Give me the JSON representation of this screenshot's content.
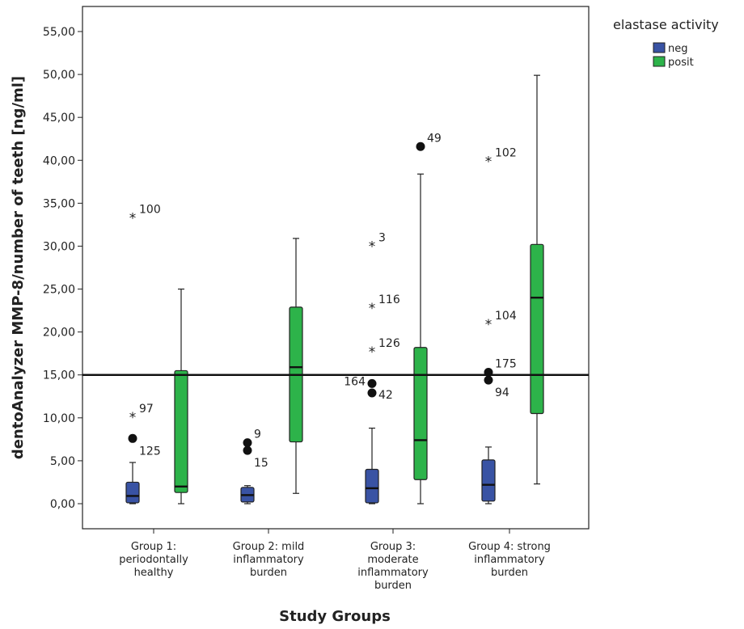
{
  "chart_data": {
    "type": "boxplot",
    "xlabel": "Study Groups",
    "ylabel": "dentoAnalyzer MMP-8/number of teeth [ng/ml]",
    "ylim": [
      -3,
      58
    ],
    "yticks": [
      "0,00",
      "5,00",
      "10,00",
      "15,00",
      "20,00",
      "25,00",
      "30,00",
      "35,00",
      "40,00",
      "45,00",
      "50,00",
      "55,00"
    ],
    "reference_line": 15,
    "grid": false,
    "legend": {
      "title": "elastase activity",
      "placement": "top-right",
      "entries": [
        {
          "label": "neg",
          "color": "#3953a4"
        },
        {
          "label": "posit",
          "color": "#2db34a"
        }
      ]
    },
    "categories": [
      [
        "Group 1:",
        "periodontally",
        "healthy"
      ],
      [
        "Group 2: mild",
        "inflammatory",
        "burden"
      ],
      [
        "Group 3:",
        "moderate",
        "inflammatory",
        "burden"
      ],
      [
        "Group 4: strong",
        "inflammatory",
        "burden"
      ]
    ],
    "series": [
      {
        "name": "neg",
        "color": "#3953a4",
        "boxes": [
          {
            "min": 0.0,
            "q1": 0.1,
            "median": 0.9,
            "q3": 2.5,
            "max": 4.8,
            "outliers": [
              {
                "value": 7.6,
                "label": "125",
                "marker": "dot",
                "label_side": "lower-right"
              },
              {
                "value": 10.1,
                "label": "97",
                "marker": "star",
                "label_side": "upper-right"
              },
              {
                "value": 33.3,
                "label": "100",
                "marker": "star",
                "label_side": "upper-right"
              }
            ]
          },
          {
            "min": 0.0,
            "q1": 0.2,
            "median": 1.0,
            "q3": 1.9,
            "max": 2.1,
            "outliers": [
              {
                "value": 6.2,
                "label": "15",
                "marker": "dot",
                "label_side": "lower-right"
              },
              {
                "value": 7.1,
                "label": "9",
                "marker": "dot",
                "label_side": "upper-right"
              }
            ]
          },
          {
            "min": 0.0,
            "q1": 0.1,
            "median": 1.8,
            "q3": 4.0,
            "max": 8.8,
            "outliers": [
              {
                "value": 12.9,
                "label": "42",
                "marker": "dot",
                "label_side": "right"
              },
              {
                "value": 14.0,
                "label": "164",
                "marker": "dot",
                "label_side": "left"
              },
              {
                "value": 17.7,
                "label": "126",
                "marker": "star",
                "label_side": "upper-right"
              },
              {
                "value": 22.8,
                "label": "116",
                "marker": "star",
                "label_side": "upper-right"
              },
              {
                "value": 30.0,
                "label": "3",
                "marker": "star",
                "label_side": "upper-right"
              }
            ]
          },
          {
            "min": 0.0,
            "q1": 0.3,
            "median": 2.2,
            "q3": 5.1,
            "max": 6.6,
            "outliers": [
              {
                "value": 14.4,
                "label": "94",
                "marker": "dot",
                "label_side": "lower-right"
              },
              {
                "value": 15.3,
                "label": "175",
                "marker": "dot",
                "label_side": "upper-right"
              },
              {
                "value": 20.9,
                "label": "104",
                "marker": "star",
                "label_side": "upper-right"
              },
              {
                "value": 39.9,
                "label": "102",
                "marker": "star",
                "label_side": "upper-right"
              }
            ]
          }
        ]
      },
      {
        "name": "posit",
        "color": "#2db34a",
        "boxes": [
          {
            "min": 0.0,
            "q1": 1.3,
            "median": 2.0,
            "q3": 15.5,
            "max": 25.0,
            "outliers": []
          },
          {
            "min": 1.2,
            "q1": 7.2,
            "median": 15.9,
            "q3": 22.9,
            "max": 30.9,
            "outliers": []
          },
          {
            "min": 0.0,
            "q1": 2.8,
            "median": 7.4,
            "q3": 18.2,
            "max": 38.4,
            "outliers": [
              {
                "value": 41.6,
                "label": "49",
                "marker": "dot",
                "label_side": "upper-right"
              }
            ]
          },
          {
            "min": 2.3,
            "q1": 10.5,
            "median": 24.0,
            "q3": 30.2,
            "max": 49.9,
            "outliers": []
          }
        ]
      }
    ]
  }
}
